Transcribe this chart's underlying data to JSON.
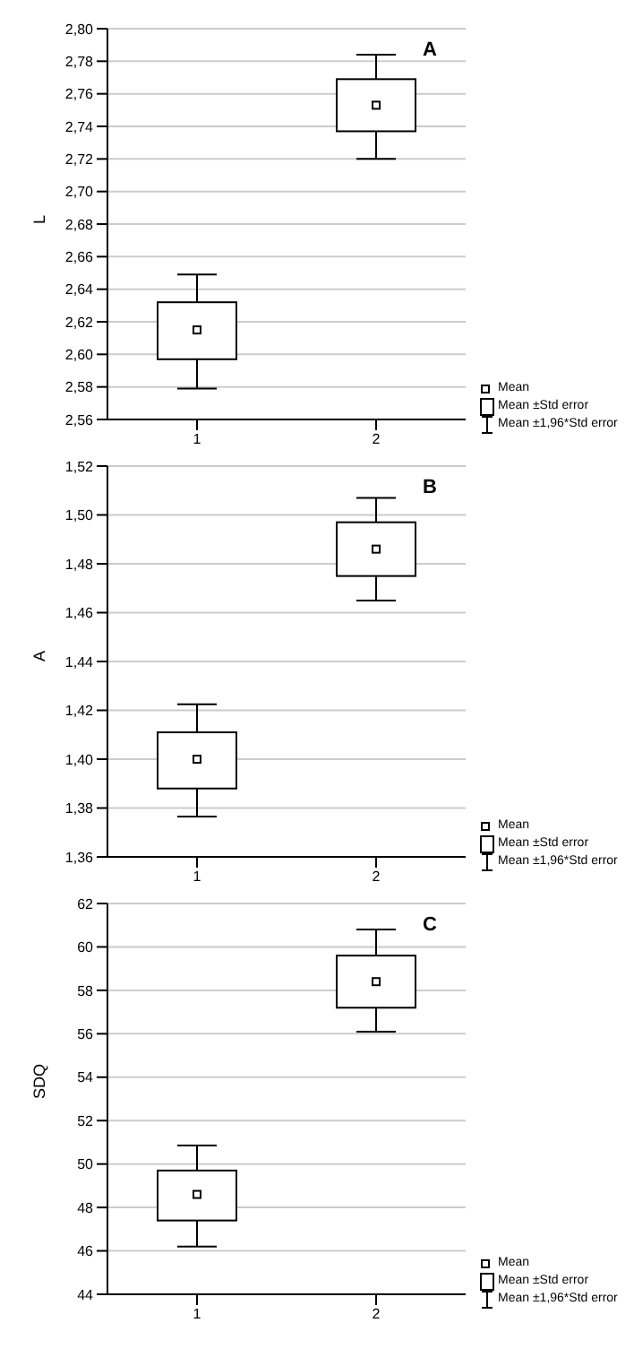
{
  "chart_data": [
    {
      "type": "box",
      "title": "A",
      "ylabel": "L",
      "categories": [
        "1",
        "2"
      ],
      "color": "#000000",
      "grid": "y",
      "marker": "square",
      "boxes": [
        {
          "low": 2.579,
          "q1": 2.597,
          "median": 2.615,
          "q3": 2.632,
          "high": 2.649
        },
        {
          "low": 2.72,
          "q1": 2.737,
          "median": 2.753,
          "q3": 2.769,
          "high": 2.784
        }
      ],
      "ylim": [
        2.56,
        2.8
      ],
      "yticks": [
        {
          "value": 2.56,
          "label": "2,56"
        },
        {
          "value": 2.58,
          "label": "2,58"
        },
        {
          "value": 2.6,
          "label": "2,60"
        },
        {
          "value": 2.62,
          "label": "2,62"
        },
        {
          "value": 2.64,
          "label": "2,64"
        },
        {
          "value": 2.66,
          "label": "2,66"
        },
        {
          "value": 2.68,
          "label": "2,68"
        },
        {
          "value": 2.7,
          "label": "2,70"
        },
        {
          "value": 2.72,
          "label": "2,72"
        },
        {
          "value": 2.74,
          "label": "2,74"
        },
        {
          "value": 2.76,
          "label": "2,76"
        },
        {
          "value": 2.78,
          "label": "2,78"
        },
        {
          "value": 2.8,
          "label": "2,80"
        }
      ],
      "annotations": [
        "Mean",
        "Mean ±Std error",
        "Mean ±1,96*Std error"
      ]
    },
    {
      "type": "box",
      "title": "B",
      "ylabel": "A",
      "categories": [
        "1",
        "2"
      ],
      "color": "#000000",
      "grid": "y",
      "marker": "square",
      "boxes": [
        {
          "low": 1.3765,
          "q1": 1.388,
          "median": 1.4,
          "q3": 1.411,
          "high": 1.4225
        },
        {
          "low": 1.465,
          "q1": 1.475,
          "median": 1.486,
          "q3": 1.497,
          "high": 1.507
        }
      ],
      "ylim": [
        1.36,
        1.52
      ],
      "yticks": [
        {
          "value": 1.36,
          "label": "1,36"
        },
        {
          "value": 1.38,
          "label": "1,38"
        },
        {
          "value": 1.4,
          "label": "1,40"
        },
        {
          "value": 1.42,
          "label": "1,42"
        },
        {
          "value": 1.44,
          "label": "1,44"
        },
        {
          "value": 1.46,
          "label": "1,46"
        },
        {
          "value": 1.48,
          "label": "1,48"
        },
        {
          "value": 1.5,
          "label": "1,50"
        },
        {
          "value": 1.52,
          "label": "1,52"
        }
      ],
      "annotations": [
        "Mean",
        "Mean ±Std error",
        "Mean ±1,96*Std error"
      ]
    },
    {
      "type": "box",
      "title": "C",
      "ylabel": "SDQ",
      "categories": [
        "1",
        "2"
      ],
      "color": "#000000",
      "grid": "y",
      "marker": "square",
      "boxes": [
        {
          "low": 46.2,
          "q1": 47.4,
          "median": 48.6,
          "q3": 49.7,
          "high": 50.85
        },
        {
          "low": 56.1,
          "q1": 57.2,
          "median": 58.4,
          "q3": 59.6,
          "high": 60.8
        }
      ],
      "ylim": [
        44,
        62
      ],
      "yticks": [
        44,
        46,
        48,
        50,
        52,
        54,
        56,
        58,
        60,
        62
      ],
      "annotations": [
        "Mean",
        "Mean ±Std error",
        "Mean ±1,96*Std error"
      ]
    }
  ]
}
